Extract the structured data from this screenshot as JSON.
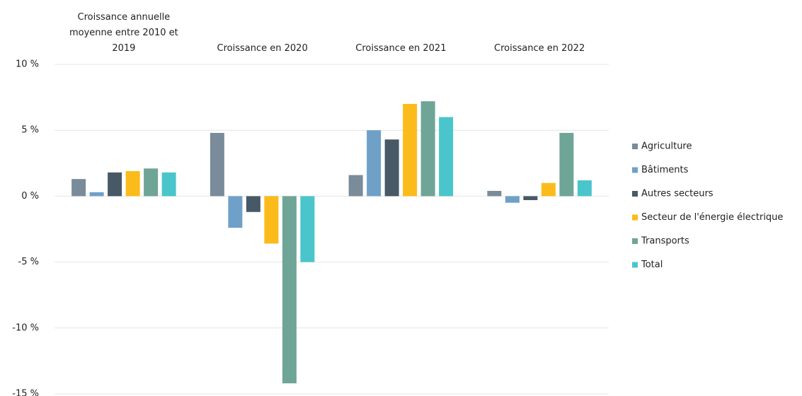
{
  "chart_data": {
    "type": "bar",
    "categories": [
      "Croissance annuelle moyenne entre 2010 et 2019",
      "Croissance en 2020",
      "Croissance en 2021",
      "Croissance en 2022"
    ],
    "series": [
      {
        "name": "Agriculture",
        "color": "#7a8b99",
        "values": [
          1.3,
          4.8,
          1.6,
          0.4
        ]
      },
      {
        "name": "Bâtiments",
        "color": "#6fa0c8",
        "values": [
          0.3,
          -2.4,
          5.0,
          -0.5
        ]
      },
      {
        "name": "Autres secteurs",
        "color": "#475966",
        "values": [
          1.8,
          -1.2,
          4.3,
          -0.3
        ]
      },
      {
        "name": "Secteur de l'énergie électrique",
        "color": "#fbbb1a",
        "values": [
          1.9,
          -3.6,
          7.0,
          1.0
        ]
      },
      {
        "name": "Transports",
        "color": "#6fa596",
        "values": [
          2.1,
          -14.2,
          7.2,
          4.8
        ]
      },
      {
        "name": "Total",
        "color": "#4bc5cc",
        "values": [
          1.8,
          -5.0,
          6.0,
          1.2
        ]
      }
    ],
    "ylim": [
      -15,
      10
    ],
    "yticks": [
      {
        "value": -15,
        "label": "-15 %"
      },
      {
        "value": -10,
        "label": "-10 %"
      },
      {
        "value": -5,
        "label": "-5 %"
      },
      {
        "value": 0,
        "label": "0 %"
      },
      {
        "value": 5,
        "label": "5 %"
      },
      {
        "value": 10,
        "label": "10 %"
      }
    ],
    "grid": true
  }
}
